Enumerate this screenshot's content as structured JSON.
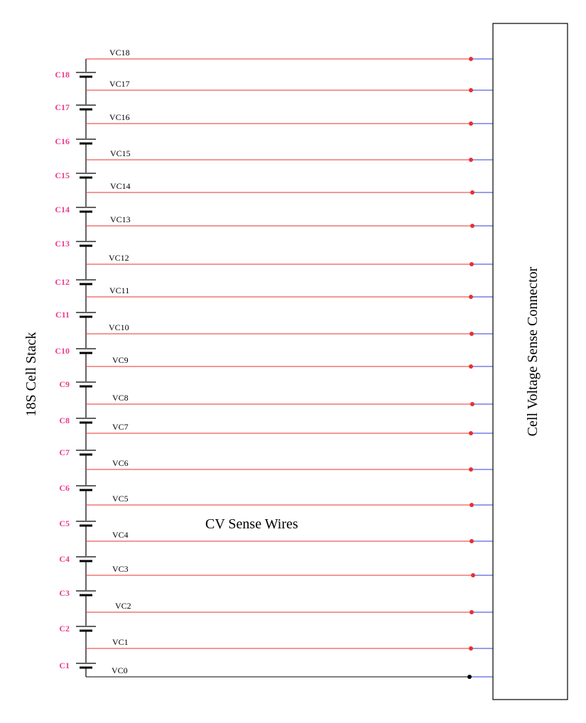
{
  "stack_label": "18S Cell Stack",
  "connector_label": "Cell Voltage  Sense Connector",
  "center_label": "CV Sense Wires",
  "colors": {
    "sense_wire": "#e8302f",
    "connector_pin": "#2b3fd8",
    "ground_wire": "#000000",
    "cell_label": "#ee3b8f",
    "stack_line": "#000000"
  },
  "cells": [
    "C1",
    "C2",
    "C3",
    "C4",
    "C5",
    "C6",
    "C7",
    "C8",
    "C9",
    "C10",
    "C11",
    "C12",
    "C13",
    "C14",
    "C15",
    "C16",
    "C17",
    "C18"
  ],
  "wires": [
    "VC0",
    "VC1",
    "VC2",
    "VC3",
    "VC4",
    "VC5",
    "VC6",
    "VC7",
    "VC8",
    "VC9",
    "VC10",
    "VC11",
    "VC12",
    "VC13",
    "VC14",
    "VC15",
    "VC16",
    "VC17",
    "VC18"
  ]
}
